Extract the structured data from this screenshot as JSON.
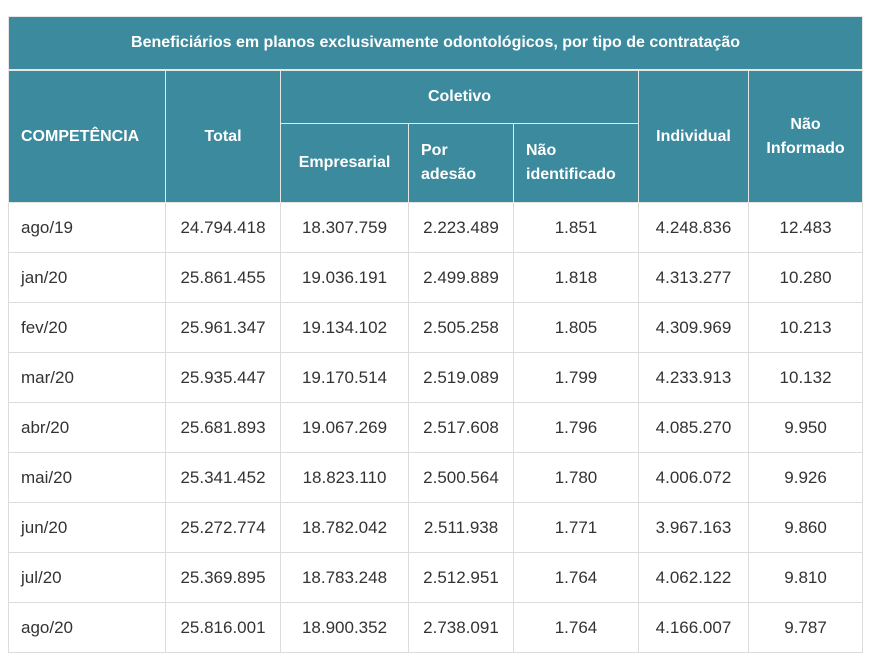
{
  "table": {
    "caption": "Beneficiários em planos exclusivamente odontológicos, por tipo de contratação",
    "headers": {
      "competencia": "COMPETÊNCIA",
      "total": "Total",
      "coletivo": "Coletivo",
      "empresarial": "Empresarial",
      "por_adesao_1": "Por",
      "por_adesao_2": "adesão",
      "nao_identificado_1": "Não",
      "nao_identificado_2": "identificado",
      "individual": "Individual",
      "nao_informado_1": "Não",
      "nao_informado_2": "Informado"
    },
    "rows": [
      {
        "competencia": "ago/19",
        "total": "24.794.418",
        "empresarial": "18.307.759",
        "por_adesao": "2.223.489",
        "nao_identificado": "1.851",
        "individual": "4.248.836",
        "nao_informado": "12.483"
      },
      {
        "competencia": "jan/20",
        "total": "25.861.455",
        "empresarial": "19.036.191",
        "por_adesao": "2.499.889",
        "nao_identificado": "1.818",
        "individual": "4.313.277",
        "nao_informado": "10.280"
      },
      {
        "competencia": "fev/20",
        "total": "25.961.347",
        "empresarial": "19.134.102",
        "por_adesao": "2.505.258",
        "nao_identificado": "1.805",
        "individual": "4.309.969",
        "nao_informado": "10.213"
      },
      {
        "competencia": "mar/20",
        "total": "25.935.447",
        "empresarial": "19.170.514",
        "por_adesao": "2.519.089",
        "nao_identificado": "1.799",
        "individual": "4.233.913",
        "nao_informado": "10.132"
      },
      {
        "competencia": "abr/20",
        "total": "25.681.893",
        "empresarial": "19.067.269",
        "por_adesao": "2.517.608",
        "nao_identificado": "1.796",
        "individual": "4.085.270",
        "nao_informado": "9.950"
      },
      {
        "competencia": "mai/20",
        "total": "25.341.452",
        "empresarial": "18.823.110",
        "por_adesao": "2.500.564",
        "nao_identificado": "1.780",
        "individual": "4.006.072",
        "nao_informado": "9.926"
      },
      {
        "competencia": "jun/20",
        "total": "25.272.774",
        "empresarial": "18.782.042",
        "por_adesao": "2.511.938",
        "nao_identificado": "1.771",
        "individual": "3.967.163",
        "nao_informado": "9.860"
      },
      {
        "competencia": "jul/20",
        "total": "25.369.895",
        "empresarial": "18.783.248",
        "por_adesao": "2.512.951",
        "nao_identificado": "1.764",
        "individual": "4.062.122",
        "nao_informado": "9.810"
      },
      {
        "competencia": "ago/20",
        "total": "25.816.001",
        "empresarial": "18.900.352",
        "por_adesao": "2.738.091",
        "nao_identificado": "1.764",
        "individual": "4.166.007",
        "nao_informado": "9.787"
      }
    ]
  },
  "colors": {
    "header_bg": "#3c8a9e",
    "header_text": "#ffffff",
    "border": "#dcdcdc"
  }
}
